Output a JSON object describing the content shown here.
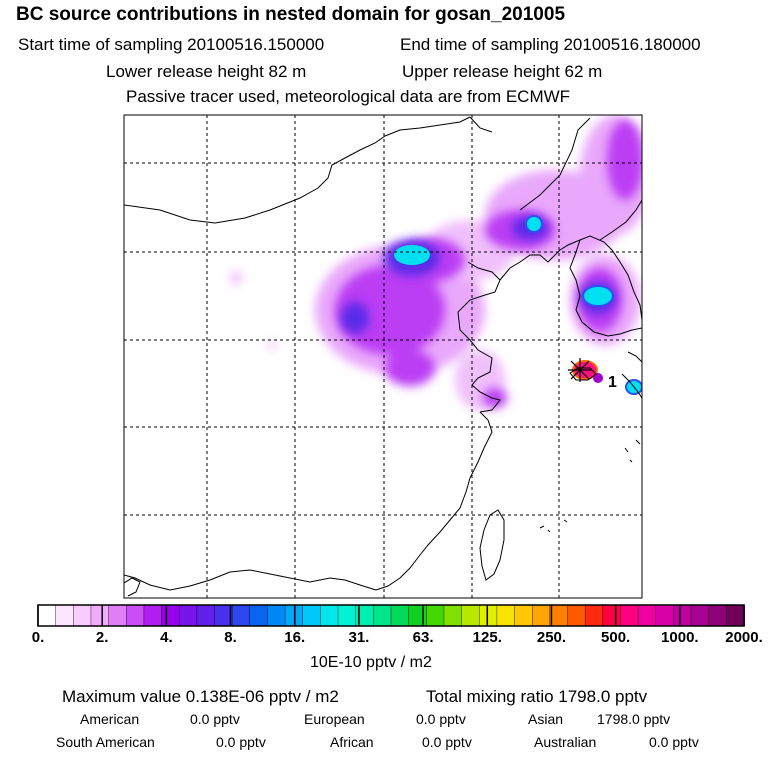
{
  "header": {
    "title": "BC  source contributions in nested domain for gosan_201005",
    "sampling_start": "Start time of sampling 20100516.150000",
    "sampling_end": "End time of sampling 20100516.180000",
    "release_lower": "Lower release height   82 m",
    "release_upper": "Upper release height   62 m",
    "tracer_note": "Passive tracer used, meteorological data are from ECMWF"
  },
  "map": {
    "release_marker_label": "1",
    "colors": {
      "frame": "#000000",
      "coast": "#000000",
      "grid": "#000000",
      "marker": "#ff0000"
    }
  },
  "colorbar": {
    "labels": [
      "0.",
      "2.",
      "4.",
      "8.",
      "16.",
      "31.",
      "63.",
      "125.",
      "250.",
      "500.",
      "1000.",
      "2000."
    ],
    "units": "10E-10 pptv / m2",
    "colors": [
      "#ffffff",
      "#fce6fe",
      "#f8ccfd",
      "#f2aafb",
      "#e07ef8",
      "#cc4cf5",
      "#b01ef0",
      "#9a00ee",
      "#7a14ec",
      "#6020ea",
      "#4a30ea",
      "#2a48ee",
      "#0a64f2",
      "#0088f6",
      "#00a8f8",
      "#00c8f8",
      "#00e8ee",
      "#00f4d4",
      "#00eeb0",
      "#00e48a",
      "#00dc5a",
      "#10d020",
      "#44d800",
      "#80e000",
      "#b8e800",
      "#e0ee00",
      "#f8e400",
      "#ffc800",
      "#ffa400",
      "#ff8000",
      "#ff5a00",
      "#ff2a10",
      "#ff0040",
      "#ff0080",
      "#f000a0",
      "#d800a8",
      "#c000a0",
      "#a80090",
      "#900078",
      "#70005a"
    ]
  },
  "footer": {
    "max_value": "Maximum value  0.138E-06 pptv / m2",
    "total_mixing": "Total mixing ratio     1798.0 pptv",
    "regions": [
      {
        "name": "American",
        "value": "0.0 pptv"
      },
      {
        "name": "European",
        "value": "0.0 pptv"
      },
      {
        "name": "Asian",
        "value": "1798.0 pptv"
      },
      {
        "name": "South American",
        "value": "0.0 pptv"
      },
      {
        "name": "African",
        "value": "0.0 pptv"
      },
      {
        "name": "Australian",
        "value": "0.0 pptv"
      }
    ]
  }
}
